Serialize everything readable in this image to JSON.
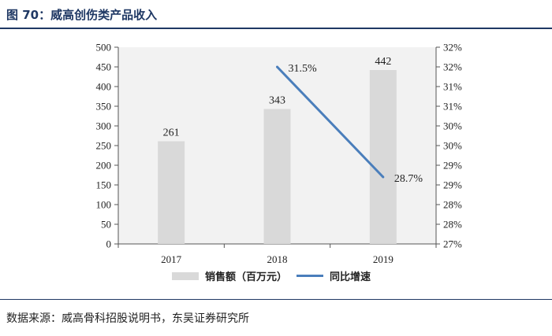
{
  "header": {
    "title": "图 70：威高创伤类产品收入"
  },
  "chart_data": {
    "type": "bar+line",
    "categories": [
      "2017",
      "2018",
      "2019"
    ],
    "series": [
      {
        "name": "销售额（百万元）",
        "type": "bar",
        "axis": "left",
        "values": [
          261,
          343,
          442
        ],
        "labels": [
          "261",
          "343",
          "442"
        ]
      },
      {
        "name": "同比增速",
        "type": "line",
        "axis": "right",
        "x": [
          "2018",
          "2019"
        ],
        "values": [
          31.5,
          28.7
        ],
        "labels": [
          "31.5%",
          "28.7%"
        ]
      }
    ],
    "y_left": {
      "ylim": [
        0,
        500
      ],
      "ticks": [
        "0",
        "50",
        "100",
        "150",
        "200",
        "250",
        "300",
        "350",
        "400",
        "450",
        "500"
      ]
    },
    "y_right": {
      "ylim": [
        27,
        32
      ],
      "ticks": [
        "27%",
        "28%",
        "28%",
        "29%",
        "29%",
        "30%",
        "30%",
        "31%",
        "31%",
        "32%",
        "32%"
      ]
    },
    "colors": {
      "bar": "#d9d9d9",
      "line": "#4a7ebb",
      "plot_bg": "#f2f2f2"
    },
    "grid": false,
    "legend_position": "bottom"
  },
  "legend": {
    "bar_label": "销售额（百万元）",
    "line_label": "同比增速"
  },
  "footer": {
    "source": "数据来源：威高骨科招股说明书，东吴证券研究所"
  }
}
